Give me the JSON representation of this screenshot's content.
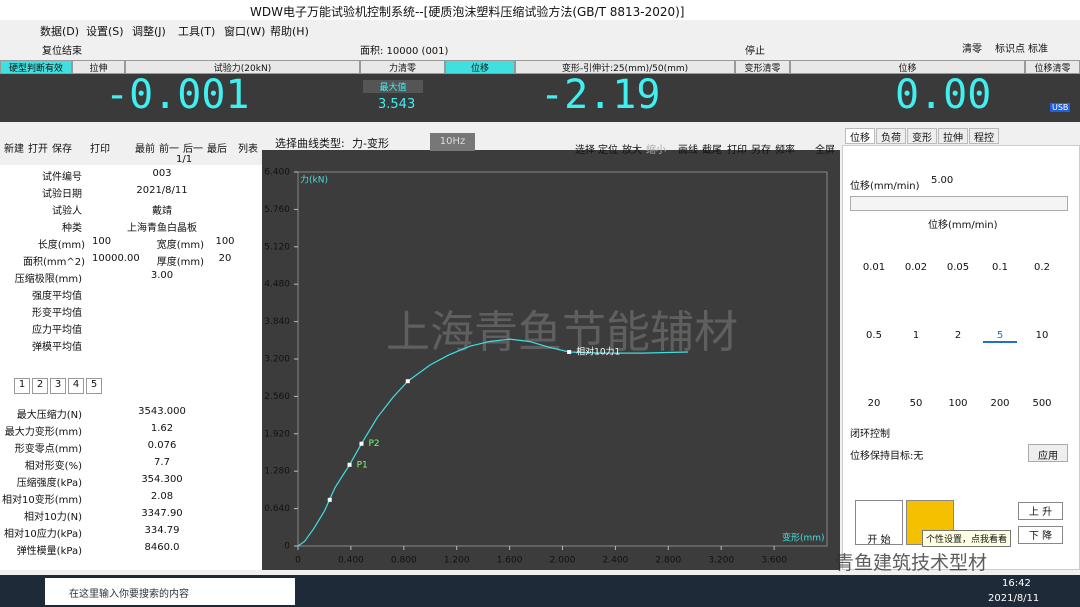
{
  "window": {
    "title": "WDW电子万能试验机控制系统--[硬质泡沫塑料压缩试验方法(GB/T 8813-2020)]",
    "menu": [
      "数据(D)",
      "设置(S)",
      "调整(J)",
      "工具(T)",
      "窗口(W)",
      "帮助(H)"
    ],
    "status_left": "复位结束",
    "status_mid": "面积: 10000 (001)",
    "status_right": "停止",
    "tools_right": [
      "清零",
      "标识点",
      "标准"
    ]
  },
  "meters": {
    "bar": [
      "硬型判断有效",
      "拉伸",
      "试验力(20kN)",
      "力清零",
      "位移",
      "变形-引伸计:25(mm)/50(mm)",
      "变形清零",
      "位移",
      "位移清零"
    ],
    "force": "-0.001",
    "max_label": "最大值",
    "max_value": "3.543",
    "deform": "-2.19",
    "disp": "0.00",
    "usb": "USB"
  },
  "toolbar_left": [
    "新建",
    "打开",
    "保存",
    "打印",
    "最前",
    "前一",
    "后一",
    "最后",
    "列表"
  ],
  "page": "1/1",
  "curve_type_label": "选择曲线类型:",
  "curve_type": "力-变形",
  "freq": "10Hz",
  "toolbar_right": [
    "选择",
    "定位",
    "放大",
    "缩小",
    "画线",
    "截尾",
    "打印",
    "另存",
    "频率",
    "全屏"
  ],
  "specimen": [
    [
      "试件编号",
      "003"
    ],
    [
      "试验日期",
      "2021/8/11"
    ],
    [
      "试验人",
      "戴靖"
    ],
    [
      "种类",
      "上海青鱼白晶板"
    ],
    [
      "长度(mm)",
      "100",
      "宽度(mm)",
      "100"
    ],
    [
      "面积(mm^2)",
      "10000.00",
      "厚度(mm)",
      "20"
    ],
    [
      "压缩极限(mm)",
      "3.00"
    ],
    [
      "强度平均值"
    ],
    [
      "形变平均值"
    ],
    [
      "应力平均值"
    ],
    [
      "弹模平均值"
    ]
  ],
  "tabs": [
    "1",
    "2",
    "3",
    "4",
    "5"
  ],
  "results": [
    [
      "最大压缩力(N)",
      "3543.000"
    ],
    [
      "最大力变形(mm)",
      "1.62"
    ],
    [
      "形变零点(mm)",
      "0.076"
    ],
    [
      "相对形变(%)",
      "7.7"
    ],
    [
      "压缩强度(kPa)",
      "354.300"
    ],
    [
      "相对10变形(mm)",
      "2.08"
    ],
    [
      "相对10力(N)",
      "3347.90"
    ],
    [
      "相对10应力(kPa)",
      "334.79"
    ],
    [
      "弹性模量(kPa)",
      "8460.0"
    ]
  ],
  "chart_data": {
    "type": "line",
    "y_label": "力(kN)",
    "x_label": "变形(mm)",
    "watermark": "上海青鱼节能辅材",
    "x": [
      0,
      0.05,
      0.12,
      0.2,
      0.28,
      0.39,
      0.48,
      0.6,
      0.72,
      0.83,
      1.0,
      1.14,
      1.3,
      1.45,
      1.6,
      1.75,
      1.9,
      2.05,
      2.3,
      2.6,
      2.95
    ],
    "series": [
      {
        "color": "#40e0e0",
        "values": [
          0,
          0.08,
          0.3,
          0.6,
          1.0,
          1.39,
          1.75,
          2.2,
          2.55,
          2.82,
          3.1,
          3.27,
          3.42,
          3.5,
          3.54,
          3.5,
          3.4,
          3.32,
          3.3,
          3.3,
          3.32
        ]
      }
    ],
    "markers": [
      {
        "x": 0.24,
        "y": 0.79
      },
      {
        "x": 0.39,
        "y": 1.39,
        "label": "P1"
      },
      {
        "x": 0.48,
        "y": 1.75,
        "label": "P2"
      },
      {
        "x": 0.83,
        "y": 2.82
      },
      {
        "x": 2.05,
        "y": 3.32,
        "label": "相对10力1"
      }
    ],
    "xlim": [
      0,
      4.0
    ],
    "ylim": [
      0,
      6.4
    ],
    "xticks": [
      0,
      {
        "value": 0.4,
        "label": "0.400"
      },
      {
        "value": 0.8,
        "label": "0.800"
      },
      {
        "value": 1.2,
        "label": "1.200"
      },
      {
        "value": 1.6,
        "label": "1.600"
      },
      {
        "value": 2.0,
        "label": "2.000"
      },
      {
        "value": 2.4,
        "label": "2.400"
      },
      {
        "value": 2.8,
        "label": "2.800"
      },
      {
        "value": 3.2,
        "label": "3.200"
      },
      {
        "value": 3.6,
        "label": "3.600"
      }
    ],
    "yticks": [
      0,
      {
        "value": 0.64,
        "label": "0.640"
      },
      {
        "value": 1.28,
        "label": "1.280"
      },
      {
        "value": 1.92,
        "label": "1.920"
      },
      {
        "value": 2.56,
        "label": "2.560"
      },
      {
        "value": 3.2,
        "label": "3.200"
      },
      {
        "value": 3.84,
        "label": "3.840"
      },
      {
        "value": 4.48,
        "label": "4.480"
      },
      {
        "value": 5.12,
        "label": "5.120"
      },
      {
        "value": 5.76,
        "label": "5.760"
      },
      {
        "value": 6.4,
        "label": "6.400"
      }
    ],
    "grid": false
  },
  "right_panel": {
    "tabs": [
      "位移",
      "负荷",
      "变形",
      "拉伸",
      "程控"
    ],
    "speed_label": "位移(mm/min)",
    "speed": "5.00",
    "unit": "位移(mm/min)",
    "speeds": [
      "0.01",
      "0.02",
      "0.05",
      "0.1",
      "0.2",
      "0.5",
      "1",
      "2",
      "5",
      "10",
      "20",
      "50",
      "100",
      "200",
      "500"
    ],
    "closed_loop": "闭环控制",
    "hold_target": "位移保持目标:无",
    "apply": "应用",
    "start": "开 始",
    "up": "上 升",
    "down": "下 降",
    "tooltip": "个性设置，点我看看"
  },
  "taskbar": {
    "search": "在这里输入你要搜索的内容",
    "time": "16:42",
    "date": "2021/8/11",
    "watermark": "青鱼建筑技术型材"
  }
}
